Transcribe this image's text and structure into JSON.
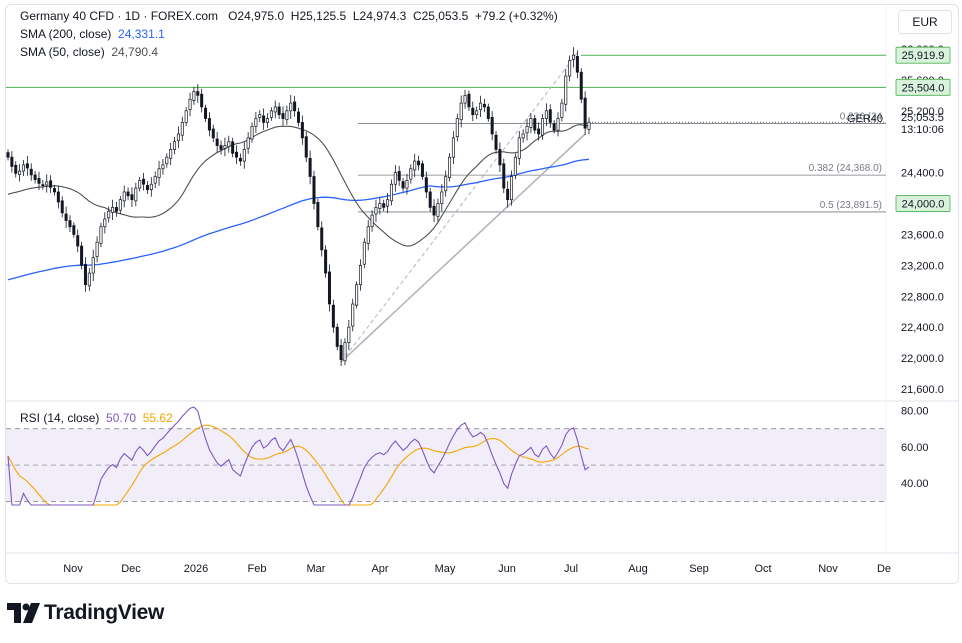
{
  "header": {
    "symbol": "Germany 40 CFD · 1D · FOREX.com",
    "o_label": "O",
    "o_value": "24,975.0",
    "h_label": "H",
    "h_value": "25,125.5",
    "l_label": "L",
    "l_value": "24,974.3",
    "c_label": "C",
    "c_value": "25,053.5",
    "change": "+79.2 (+0.32%)",
    "sma200_label": "SMA (200, close)",
    "sma200_value": "24,331.1",
    "sma50_label": "SMA (50, close)",
    "sma50_value": "24,790.4"
  },
  "currency_button": "EUR",
  "rsi": {
    "label": "RSI (14, close)",
    "value": "50.70",
    "ma_value": "55.62"
  },
  "logo_text": "TradingView",
  "colors": {
    "up": "#ffffff",
    "down": "#131722",
    "sma200": "#2962ff",
    "sma50": "#505050",
    "rsi": "#7e57c2",
    "rsi_ma": "#f7a600",
    "hline": "#4caf50",
    "fib": "#787b86"
  },
  "chart_data": [
    {
      "type": "candlestick",
      "title": "Germany 40 CFD · 1D · FOREX.com",
      "x_ticks": [
        "Nov",
        "Dec",
        "2026",
        "Feb",
        "Mar",
        "Apr",
        "May",
        "Jun",
        "Jul",
        "Aug",
        "Sep",
        "Oct",
        "Nov",
        "De"
      ],
      "y_ticks": [
        "21,600.0",
        "22,000.0",
        "22,400.0",
        "22,800.0",
        "23,200.0",
        "23,600.0",
        "24,400.0",
        "25,200.0",
        "25,600.0",
        "26,000.0"
      ],
      "ylim": [
        21600,
        26000
      ],
      "last": {
        "label": "GER40",
        "price": "25,053.5",
        "countdown": "13:10:06"
      },
      "horizontal_levels": [
        {
          "label": "25,919.9",
          "value": 25919.9
        },
        {
          "label": "25,504.0",
          "value": 25504.0
        },
        {
          "label": "24,000.0",
          "value": 24000.0
        }
      ],
      "fibonacci": [
        {
          "label": "0.236 (24",
          "value": 25035
        },
        {
          "label": "0.382 (24,368.0)",
          "value": 24368.0
        },
        {
          "label": "0.5 (23,891.5)",
          "value": 23891.5
        }
      ],
      "trendline": [
        {
          "t": "Mar 24",
          "v": 21950
        },
        {
          "t": "Jul 8",
          "v": 24900
        }
      ],
      "closes": [
        24600,
        24480,
        24390,
        24420,
        24500,
        24460,
        24370,
        24310,
        24260,
        24240,
        24280,
        24210,
        24150,
        24020,
        23880,
        23780,
        23700,
        23600,
        23450,
        23200,
        22950,
        23100,
        23300,
        23500,
        23700,
        23800,
        23900,
        23950,
        23900,
        24050,
        24150,
        24100,
        24050,
        24200,
        24300,
        24250,
        24180,
        24250,
        24350,
        24450,
        24500,
        24600,
        24700,
        24800,
        24900,
        25050,
        25200,
        25350,
        25450,
        25400,
        25250,
        25100,
        24950,
        24850,
        24750,
        24700,
        24750,
        24800,
        24650,
        24600,
        24550,
        24700,
        24850,
        25000,
        25100,
        25150,
        25050,
        25100,
        25200,
        25250,
        25150,
        25100,
        25200,
        25300,
        25200,
        25050,
        24850,
        24600,
        24350,
        24000,
        23700,
        23400,
        23100,
        22700,
        22400,
        22150,
        21980,
        22200,
        22400,
        22700,
        22950,
        23200,
        23500,
        23700,
        23850,
        23950,
        24000,
        23950,
        24050,
        24250,
        24400,
        24300,
        24200,
        24300,
        24450,
        24550,
        24500,
        24350,
        24150,
        23950,
        23850,
        24000,
        24150,
        24350,
        24600,
        24850,
        25100,
        25300,
        25400,
        25250,
        25150,
        25200,
        25300,
        25250,
        25100,
        24900,
        24700,
        24500,
        24200,
        24050,
        24350,
        24600,
        24850,
        24900,
        25000,
        25100,
        24950,
        24900,
        25100,
        25200,
        25050,
        24950,
        25100,
        25300,
        25650,
        25850,
        25919.9,
        25700,
        25350,
        24975,
        25053.5
      ],
      "sma200_last": 24331.1,
      "sma50_last": 24790.4
    },
    {
      "type": "line",
      "title": "RSI (14, close)",
      "y_ticks": [
        "40.00",
        "60.00",
        "80.00"
      ],
      "ylim": [
        28,
        82
      ],
      "bands": [
        30,
        50,
        70
      ],
      "rsi_last": 50.7,
      "rsi_ma_last": 55.62
    }
  ]
}
